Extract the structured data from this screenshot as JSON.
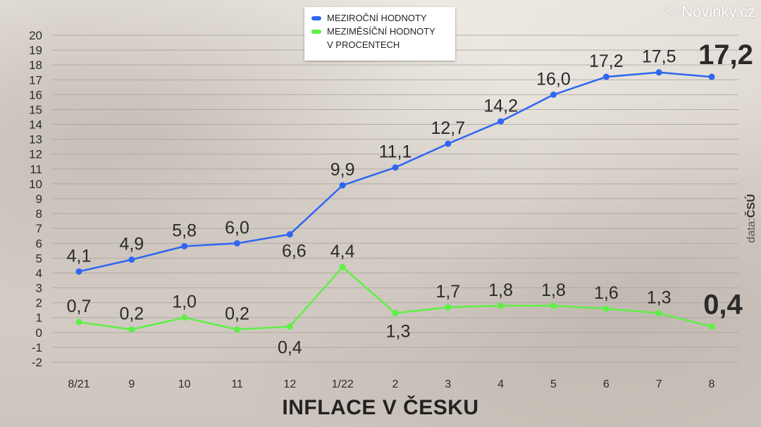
{
  "brand": {
    "text": "© Novinky.cz"
  },
  "source": {
    "prefix": "data:",
    "name": "ČSÚ"
  },
  "chart_data": {
    "type": "line",
    "title": "INFLACE V ČESKU",
    "xlabel": "",
    "ylabel": "",
    "categories": [
      "8/21",
      "9",
      "10",
      "11",
      "12",
      "1/22",
      "2",
      "3",
      "4",
      "5",
      "6",
      "7",
      "8"
    ],
    "ylim": [
      -2,
      20
    ],
    "yticks": [
      -2,
      -1,
      0,
      1,
      2,
      3,
      4,
      5,
      6,
      7,
      8,
      9,
      10,
      11,
      12,
      13,
      14,
      15,
      16,
      17,
      18,
      19,
      20
    ],
    "grid": true,
    "legend_position": "top-center",
    "legend_note": "V PROCENTECH",
    "series": [
      {
        "name": "MEZIROČNÍ HODNOTY",
        "color": "#2f66f0",
        "values": [
          4.1,
          4.9,
          5.8,
          6.0,
          6.6,
          9.9,
          11.1,
          12.7,
          14.2,
          16.0,
          17.2,
          17.5,
          17.2
        ],
        "labels": [
          "4,1",
          "4,9",
          "5,8",
          "6,0",
          "6,6",
          "9,9",
          "11,1",
          "12,7",
          "14,2",
          "16,0",
          "17,2",
          "17,5",
          "17,2"
        ]
      },
      {
        "name": "MEZIMĚSÍČNÍ HODNOTY",
        "color": "#5ef046",
        "values": [
          0.7,
          0.2,
          1.0,
          0.2,
          0.4,
          4.4,
          1.3,
          1.7,
          1.8,
          1.8,
          1.6,
          1.3,
          0.4
        ],
        "labels": [
          "0,7",
          "0,2",
          "1,0",
          "0,2",
          "0,4",
          "4,4",
          "1,3",
          "1,7",
          "1,8",
          "1,8",
          "1,6",
          "1,3",
          "0,4"
        ]
      }
    ]
  }
}
